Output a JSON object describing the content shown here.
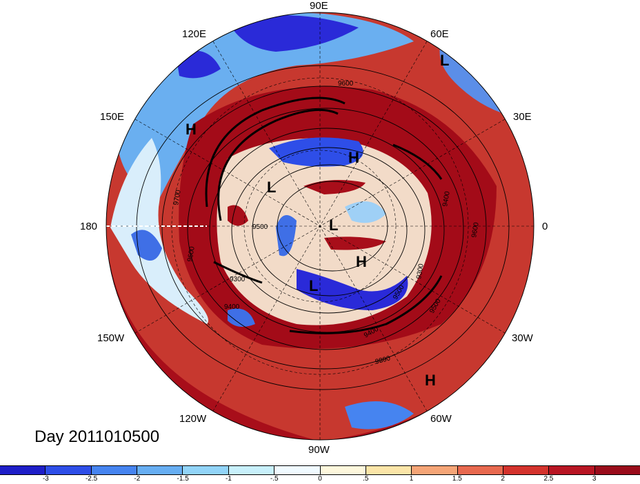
{
  "map": {
    "title": "Day 2011010500",
    "projection": "north-polar-stereographic",
    "longitude_labels": [
      "90E",
      "60E",
      "30E",
      "0",
      "30W",
      "60W",
      "90W",
      "120W",
      "150W",
      "180",
      "150E",
      "120E"
    ],
    "pressure_systems": [
      "L",
      "H",
      "H",
      "L",
      "L",
      "H",
      "L",
      "H"
    ],
    "contour_labels": [
      "9600",
      "9700",
      "9500",
      "9400",
      "9300",
      "9400",
      "9300",
      "9600",
      "9500",
      "9400",
      "9800",
      "9600",
      "9500"
    ],
    "colors": {
      "strong_negative": "#2a2ad8",
      "weak_positive": "#f6e6b0",
      "strong_positive": "#a80e1a"
    }
  },
  "colorbar": {
    "colors": [
      "#1e1ec8",
      "#2e4ee8",
      "#4684f0",
      "#67aef2",
      "#92d4f8",
      "#c8f0fb",
      "#f0faff",
      "#fdf7dc",
      "#fbe5a8",
      "#f5a577",
      "#e8694f",
      "#d4332d",
      "#b81523",
      "#9a0c1b"
    ],
    "labels": [
      "-3",
      "-2.5",
      "-2",
      "-1.5",
      "-1",
      "-.5",
      "0",
      ".5",
      "1",
      "1.5",
      "2",
      "2.5",
      "3"
    ]
  }
}
